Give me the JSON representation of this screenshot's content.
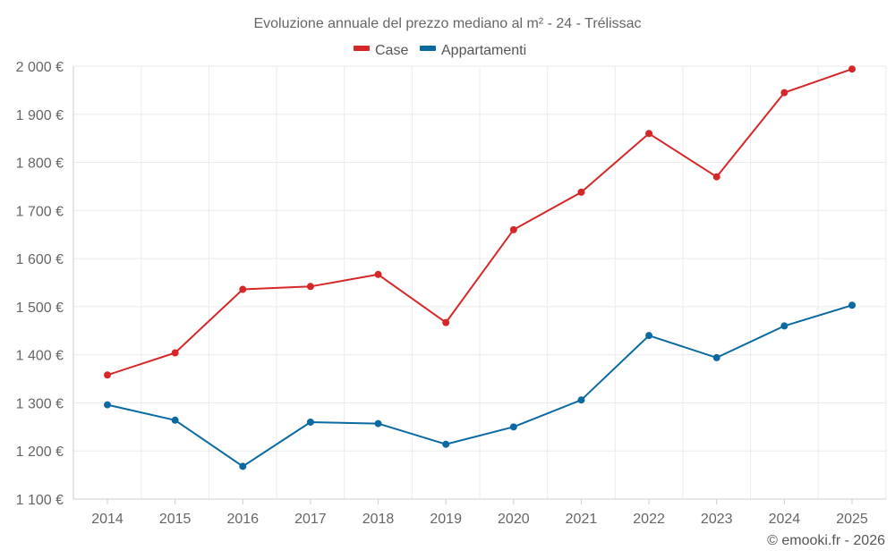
{
  "chart_data": {
    "type": "line",
    "title": "Evoluzione annuale del prezzo mediano al m² - 24 - Trélissac",
    "x": [
      "2014",
      "2015",
      "2016",
      "2017",
      "2018",
      "2019",
      "2020",
      "2021",
      "2022",
      "2023",
      "2024",
      "2025"
    ],
    "series": [
      {
        "name": "Case",
        "color": "#d62728",
        "values": [
          1358,
          1404,
          1536,
          1542,
          1567,
          1467,
          1660,
          1738,
          1860,
          1770,
          1945,
          1994
        ]
      },
      {
        "name": "Appartamenti",
        "color": "#0a6aa1",
        "values": [
          1296,
          1264,
          1168,
          1260,
          1257,
          1214,
          1250,
          1306,
          1440,
          1394,
          1460,
          1503
        ]
      }
    ],
    "ylim": [
      1100,
      2000
    ],
    "yticks": [
      1100,
      1200,
      1300,
      1400,
      1500,
      1600,
      1700,
      1800,
      1900,
      2000
    ],
    "ytick_labels": [
      "1 100 €",
      "1 200 €",
      "1 300 €",
      "1 400 €",
      "1 500 €",
      "1 600 €",
      "1 700 €",
      "1 800 €",
      "1 900 €",
      "2 000 €"
    ],
    "xlabel": "",
    "ylabel": "",
    "grid": true,
    "legend_position": "top-center"
  },
  "credit": "© emooki.fr - 2026"
}
